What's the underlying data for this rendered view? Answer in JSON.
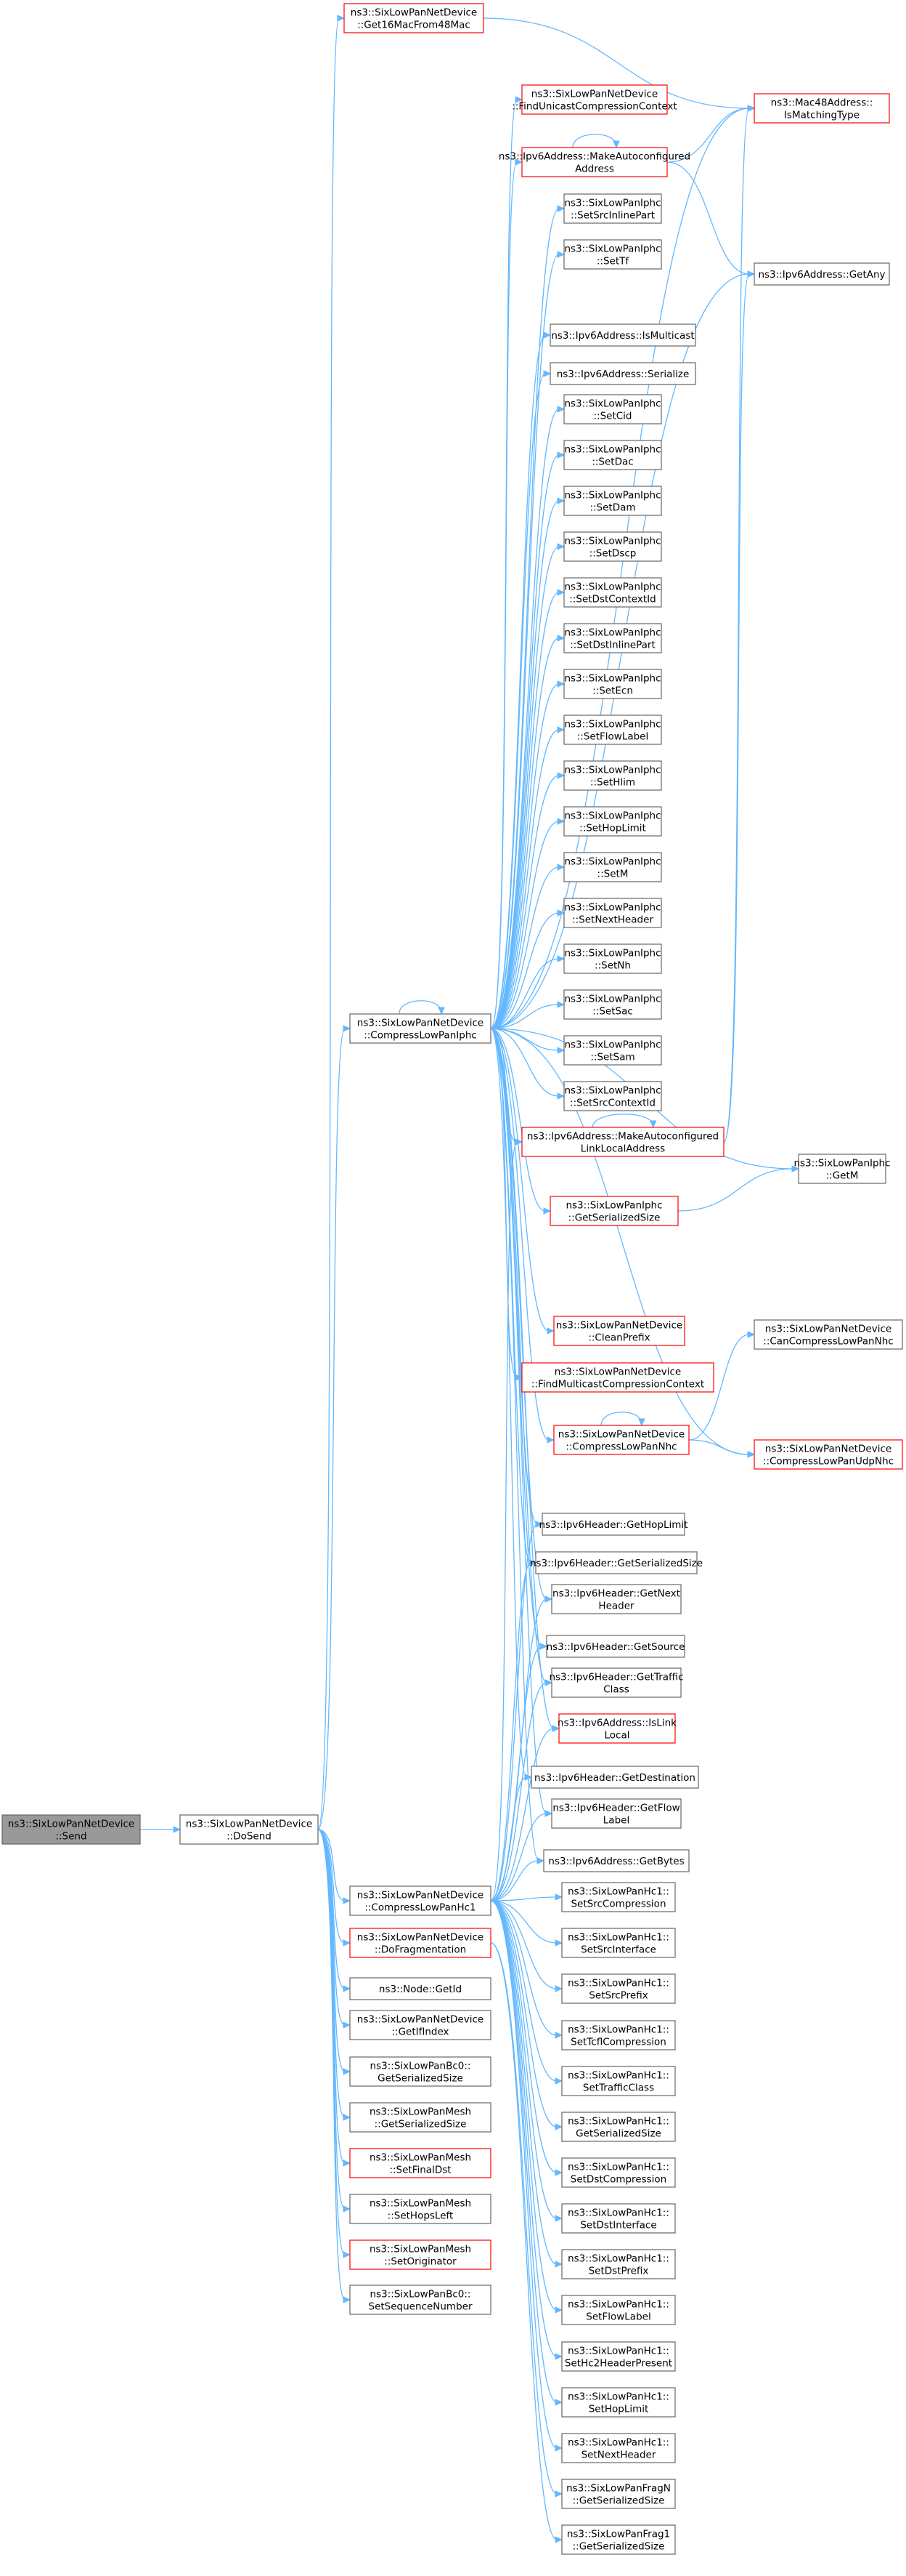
{
  "colors": {
    "edge": "#63b8ff",
    "node_border": "#666666",
    "node_border_truncated": "#ff0000",
    "root_fill": "#999999",
    "node_fill": "#ffffff",
    "text": "#000000"
  },
  "nodes": [
    {
      "id": "send",
      "label": [
        "ns3::SixLowPanNetDevice",
        "::Send"
      ],
      "root": true
    },
    {
      "id": "dosend",
      "label": [
        "ns3::SixLowPanNetDevice",
        "::DoSend"
      ]
    },
    {
      "id": "get16mac",
      "label": [
        "ns3::SixLowPanNetDevice",
        "::Get16MacFrom48Mac"
      ],
      "red": true
    },
    {
      "id": "findunicast",
      "label": [
        "ns3::SixLowPanNetDevice",
        "::FindUnicastCompressionContext"
      ],
      "red": true
    },
    {
      "id": "makeautoconf",
      "label": [
        "ns3::Ipv6Address::MakeAutoconfigured",
        "Address"
      ],
      "red": true
    },
    {
      "id": "setsrcinlinepart",
      "label": [
        "ns3::SixLowPanIphc",
        "::SetSrcInlinePart"
      ]
    },
    {
      "id": "settf",
      "label": [
        "ns3::SixLowPanIphc",
        "::SetTf"
      ]
    },
    {
      "id": "ismulticast",
      "label": [
        "ns3::Ipv6Address::IsMulticast"
      ]
    },
    {
      "id": "serialize",
      "label": [
        "ns3::Ipv6Address::Serialize"
      ]
    },
    {
      "id": "setcid",
      "label": [
        "ns3::SixLowPanIphc",
        "::SetCid"
      ]
    },
    {
      "id": "setdac",
      "label": [
        "ns3::SixLowPanIphc",
        "::SetDac"
      ]
    },
    {
      "id": "setdam",
      "label": [
        "ns3::SixLowPanIphc",
        "::SetDam"
      ]
    },
    {
      "id": "setdscp",
      "label": [
        "ns3::SixLowPanIphc",
        "::SetDscp"
      ]
    },
    {
      "id": "setdstcontextid",
      "label": [
        "ns3::SixLowPanIphc",
        "::SetDstContextId"
      ]
    },
    {
      "id": "setdstinlinepart",
      "label": [
        "ns3::SixLowPanIphc",
        "::SetDstInlinePart"
      ]
    },
    {
      "id": "setecn",
      "label": [
        "ns3::SixLowPanIphc",
        "::SetEcn"
      ]
    },
    {
      "id": "setflowlabel",
      "label": [
        "ns3::SixLowPanIphc",
        "::SetFlowLabel"
      ]
    },
    {
      "id": "sethlim",
      "label": [
        "ns3::SixLowPanIphc",
        "::SetHlim"
      ]
    },
    {
      "id": "sethoplimit",
      "label": [
        "ns3::SixLowPanIphc",
        "::SetHopLimit"
      ]
    },
    {
      "id": "setm",
      "label": [
        "ns3::SixLowPanIphc",
        "::SetM"
      ]
    },
    {
      "id": "setnextheader",
      "label": [
        "ns3::SixLowPanIphc",
        "::SetNextHeader"
      ]
    },
    {
      "id": "setnh",
      "label": [
        "ns3::SixLowPanIphc",
        "::SetNh"
      ]
    },
    {
      "id": "setsac",
      "label": [
        "ns3::SixLowPanIphc",
        "::SetSac"
      ]
    },
    {
      "id": "setsam",
      "label": [
        "ns3::SixLowPanIphc",
        "::SetSam"
      ]
    },
    {
      "id": "setsrccontextid",
      "label": [
        "ns3::SixLowPanIphc",
        "::SetSrcContextId"
      ]
    },
    {
      "id": "makeautolinklocal",
      "label": [
        "ns3::Ipv6Address::MakeAutoconfigured",
        "LinkLocalAddress"
      ],
      "red": true
    },
    {
      "id": "iphcgetsersize",
      "label": [
        "ns3::SixLowPanIphc",
        "::GetSerializedSize"
      ],
      "red": true
    },
    {
      "id": "cleanprefix",
      "label": [
        "ns3::SixLowPanNetDevice",
        "::CleanPrefix"
      ],
      "red": true
    },
    {
      "id": "findmulticast",
      "label": [
        "ns3::SixLowPanNetDevice",
        "::FindMulticastCompressionContext"
      ],
      "red": true
    },
    {
      "id": "compresslowpannhc",
      "label": [
        "ns3::SixLowPanNetDevice",
        "::CompressLowPanNhc"
      ],
      "red": true
    },
    {
      "id": "compresslowpaniphc",
      "label": [
        "ns3::SixLowPanNetDevice",
        "::CompressLowPanIphc"
      ]
    },
    {
      "id": "mac48ismatching",
      "label": [
        "ns3::Mac48Address::",
        "IsMatchingType"
      ],
      "red": true
    },
    {
      "id": "ipv6getany",
      "label": [
        "ns3::Ipv6Address::GetAny"
      ]
    },
    {
      "id": "iphcgetm",
      "label": [
        "ns3::SixLowPanIphc",
        "::GetM"
      ]
    },
    {
      "id": "cancompressnhc",
      "label": [
        "ns3::SixLowPanNetDevice",
        "::CanCompressLowPanNhc"
      ]
    },
    {
      "id": "compressudpnhc",
      "label": [
        "ns3::SixLowPanNetDevice",
        "::CompressLowPanUdpNhc"
      ],
      "red": true
    },
    {
      "id": "gethoplimit",
      "label": [
        "ns3::Ipv6Header::GetHopLimit"
      ]
    },
    {
      "id": "hdrgetsersize",
      "label": [
        "ns3::Ipv6Header::GetSerializedSize"
      ]
    },
    {
      "id": "getnextheader",
      "label": [
        "ns3::Ipv6Header::GetNext",
        "Header"
      ]
    },
    {
      "id": "getsource",
      "label": [
        "ns3::Ipv6Header::GetSource"
      ]
    },
    {
      "id": "gettrafficclass",
      "label": [
        "ns3::Ipv6Header::GetTraffic",
        "Class"
      ]
    },
    {
      "id": "islinklocal",
      "label": [
        "ns3::Ipv6Address::IsLink",
        "Local"
      ],
      "red": true
    },
    {
      "id": "getdestination",
      "label": [
        "ns3::Ipv6Header::GetDestination"
      ]
    },
    {
      "id": "getflowlabel",
      "label": [
        "ns3::Ipv6Header::GetFlow",
        "Label"
      ]
    },
    {
      "id": "getbytes",
      "label": [
        "ns3::Ipv6Address::GetBytes"
      ]
    },
    {
      "id": "compresslowpanhc1",
      "label": [
        "ns3::SixLowPanNetDevice",
        "::CompressLowPanHc1"
      ]
    },
    {
      "id": "dofragmentation",
      "label": [
        "ns3::SixLowPanNetDevice",
        "::DoFragmentation"
      ],
      "red": true
    },
    {
      "id": "nodegetid",
      "label": [
        "ns3::Node::GetId"
      ]
    },
    {
      "id": "getifindex",
      "label": [
        "ns3::SixLowPanNetDevice",
        "::GetIfIndex"
      ]
    },
    {
      "id": "bc0getsersize",
      "label": [
        "ns3::SixLowPanBc0::",
        "GetSerializedSize"
      ]
    },
    {
      "id": "meshgetsersize",
      "label": [
        "ns3::SixLowPanMesh",
        "::GetSerializedSize"
      ]
    },
    {
      "id": "setfinaldst",
      "label": [
        "ns3::SixLowPanMesh",
        "::SetFinalDst"
      ],
      "red": true
    },
    {
      "id": "sethopsleft",
      "label": [
        "ns3::SixLowPanMesh",
        "::SetHopsLeft"
      ]
    },
    {
      "id": "setoriginator",
      "label": [
        "ns3::SixLowPanMesh",
        "::SetOriginator"
      ],
      "red": true
    },
    {
      "id": "setseqnum",
      "label": [
        "ns3::SixLowPanBc0::",
        "SetSequenceNumber"
      ]
    },
    {
      "id": "hc1srccomp",
      "label": [
        "ns3::SixLowPanHc1::",
        "SetSrcCompression"
      ]
    },
    {
      "id": "hc1srcif",
      "label": [
        "ns3::SixLowPanHc1::",
        "SetSrcInterface"
      ]
    },
    {
      "id": "hc1srcprefix",
      "label": [
        "ns3::SixLowPanHc1::",
        "SetSrcPrefix"
      ]
    },
    {
      "id": "hc1tcflcomp",
      "label": [
        "ns3::SixLowPanHc1::",
        "SetTcflCompression"
      ]
    },
    {
      "id": "hc1trafficclass",
      "label": [
        "ns3::SixLowPanHc1::",
        "SetTrafficClass"
      ]
    },
    {
      "id": "hc1getsersize",
      "label": [
        "ns3::SixLowPanHc1::",
        "GetSerializedSize"
      ]
    },
    {
      "id": "hc1dstcomp",
      "label": [
        "ns3::SixLowPanHc1::",
        "SetDstCompression"
      ]
    },
    {
      "id": "hc1dstif",
      "label": [
        "ns3::SixLowPanHc1::",
        "SetDstInterface"
      ]
    },
    {
      "id": "hc1dstprefix",
      "label": [
        "ns3::SixLowPanHc1::",
        "SetDstPrefix"
      ]
    },
    {
      "id": "hc1flowlabel",
      "label": [
        "ns3::SixLowPanHc1::",
        "SetFlowLabel"
      ]
    },
    {
      "id": "hc1hc2present",
      "label": [
        "ns3::SixLowPanHc1::",
        "SetHc2HeaderPresent"
      ]
    },
    {
      "id": "hc1hoplimit",
      "label": [
        "ns3::SixLowPanHc1::",
        "SetHopLimit"
      ]
    },
    {
      "id": "hc1nextheader",
      "label": [
        "ns3::SixLowPanHc1::",
        "SetNextHeader"
      ]
    },
    {
      "id": "fragngetsersize",
      "label": [
        "ns3::SixLowPanFragN",
        "::GetSerializedSize"
      ]
    },
    {
      "id": "frag1getsersize",
      "label": [
        "ns3::SixLowPanFrag1",
        "::GetSerializedSize"
      ]
    }
  ],
  "edges": [
    [
      "send",
      "dosend"
    ],
    [
      "dosend",
      "get16mac"
    ],
    [
      "dosend",
      "compresslowpaniphc"
    ],
    [
      "dosend",
      "compresslowpanhc1"
    ],
    [
      "dosend",
      "dofragmentation"
    ],
    [
      "dosend",
      "nodegetid"
    ],
    [
      "dosend",
      "getifindex"
    ],
    [
      "dosend",
      "bc0getsersize"
    ],
    [
      "dosend",
      "meshgetsersize"
    ],
    [
      "dosend",
      "setfinaldst"
    ],
    [
      "dosend",
      "sethopsleft"
    ],
    [
      "dosend",
      "setoriginator"
    ],
    [
      "dosend",
      "setseqnum"
    ],
    [
      "get16mac",
      "mac48ismatching"
    ],
    [
      "compresslowpaniphc",
      "compresslowpaniphc"
    ],
    [
      "compresslowpaniphc",
      "findunicast"
    ],
    [
      "compresslowpaniphc",
      "makeautoconf"
    ],
    [
      "compresslowpaniphc",
      "setsrcinlinepart"
    ],
    [
      "compresslowpaniphc",
      "settf"
    ],
    [
      "compresslowpaniphc",
      "ismulticast"
    ],
    [
      "compresslowpaniphc",
      "serialize"
    ],
    [
      "compresslowpaniphc",
      "setcid"
    ],
    [
      "compresslowpaniphc",
      "setdac"
    ],
    [
      "compresslowpaniphc",
      "setdam"
    ],
    [
      "compresslowpaniphc",
      "setdscp"
    ],
    [
      "compresslowpaniphc",
      "setdstcontextid"
    ],
    [
      "compresslowpaniphc",
      "setdstinlinepart"
    ],
    [
      "compresslowpaniphc",
      "setecn"
    ],
    [
      "compresslowpaniphc",
      "setflowlabel"
    ],
    [
      "compresslowpaniphc",
      "sethlim"
    ],
    [
      "compresslowpaniphc",
      "sethoplimit"
    ],
    [
      "compresslowpaniphc",
      "setm"
    ],
    [
      "compresslowpaniphc",
      "setnextheader"
    ],
    [
      "compresslowpaniphc",
      "setnh"
    ],
    [
      "compresslowpaniphc",
      "setsac"
    ],
    [
      "compresslowpaniphc",
      "setsam"
    ],
    [
      "compresslowpaniphc",
      "setsrccontextid"
    ],
    [
      "compresslowpaniphc",
      "makeautolinklocal"
    ],
    [
      "compresslowpaniphc",
      "iphcgetsersize"
    ],
    [
      "compresslowpaniphc",
      "cleanprefix"
    ],
    [
      "compresslowpaniphc",
      "findmulticast"
    ],
    [
      "compresslowpaniphc",
      "compresslowpannhc"
    ],
    [
      "compresslowpaniphc",
      "mac48ismatching"
    ],
    [
      "compresslowpaniphc",
      "ipv6getany"
    ],
    [
      "compresslowpaniphc",
      "iphcgetm"
    ],
    [
      "compresslowpaniphc",
      "compressudpnhc"
    ],
    [
      "compresslowpaniphc",
      "gethoplimit"
    ],
    [
      "compresslowpaniphc",
      "hdrgetsersize"
    ],
    [
      "compresslowpaniphc",
      "getnextheader"
    ],
    [
      "compresslowpaniphc",
      "getsource"
    ],
    [
      "compresslowpaniphc",
      "gettrafficclass"
    ],
    [
      "compresslowpaniphc",
      "islinklocal"
    ],
    [
      "compresslowpaniphc",
      "getdestination"
    ],
    [
      "compresslowpaniphc",
      "getflowlabel"
    ],
    [
      "compresslowpaniphc",
      "getbytes"
    ],
    [
      "makeautoconf",
      "makeautoconf"
    ],
    [
      "makeautoconf",
      "mac48ismatching"
    ],
    [
      "makeautoconf",
      "ipv6getany"
    ],
    [
      "makeautolinklocal",
      "makeautolinklocal"
    ],
    [
      "makeautolinklocal",
      "mac48ismatching"
    ],
    [
      "makeautolinklocal",
      "ipv6getany"
    ],
    [
      "iphcgetsersize",
      "iphcgetm"
    ],
    [
      "compresslowpannhc",
      "compresslowpannhc"
    ],
    [
      "compresslowpannhc",
      "cancompressnhc"
    ],
    [
      "compresslowpannhc",
      "compressudpnhc"
    ],
    [
      "compresslowpanhc1",
      "makeautolinklocal"
    ],
    [
      "compresslowpanhc1",
      "gethoplimit"
    ],
    [
      "compresslowpanhc1",
      "hdrgetsersize"
    ],
    [
      "compresslowpanhc1",
      "getnextheader"
    ],
    [
      "compresslowpanhc1",
      "getsource"
    ],
    [
      "compresslowpanhc1",
      "gettrafficclass"
    ],
    [
      "compresslowpanhc1",
      "islinklocal"
    ],
    [
      "compresslowpanhc1",
      "getdestination"
    ],
    [
      "compresslowpanhc1",
      "getflowlabel"
    ],
    [
      "compresslowpanhc1",
      "getbytes"
    ],
    [
      "compresslowpanhc1",
      "hc1srccomp"
    ],
    [
      "compresslowpanhc1",
      "hc1srcif"
    ],
    [
      "compresslowpanhc1",
      "hc1srcprefix"
    ],
    [
      "compresslowpanhc1",
      "hc1tcflcomp"
    ],
    [
      "compresslowpanhc1",
      "hc1trafficclass"
    ],
    [
      "compresslowpanhc1",
      "hc1getsersize"
    ],
    [
      "compresslowpanhc1",
      "hc1dstcomp"
    ],
    [
      "compresslowpanhc1",
      "hc1dstif"
    ],
    [
      "compresslowpanhc1",
      "hc1dstprefix"
    ],
    [
      "compresslowpanhc1",
      "hc1flowlabel"
    ],
    [
      "compresslowpanhc1",
      "hc1hc2present"
    ],
    [
      "compresslowpanhc1",
      "hc1hoplimit"
    ],
    [
      "compresslowpanhc1",
      "hc1nextheader"
    ],
    [
      "dofragmentation",
      "fragngetsersize"
    ],
    [
      "dofragmentation",
      "frag1getsersize"
    ]
  ]
}
